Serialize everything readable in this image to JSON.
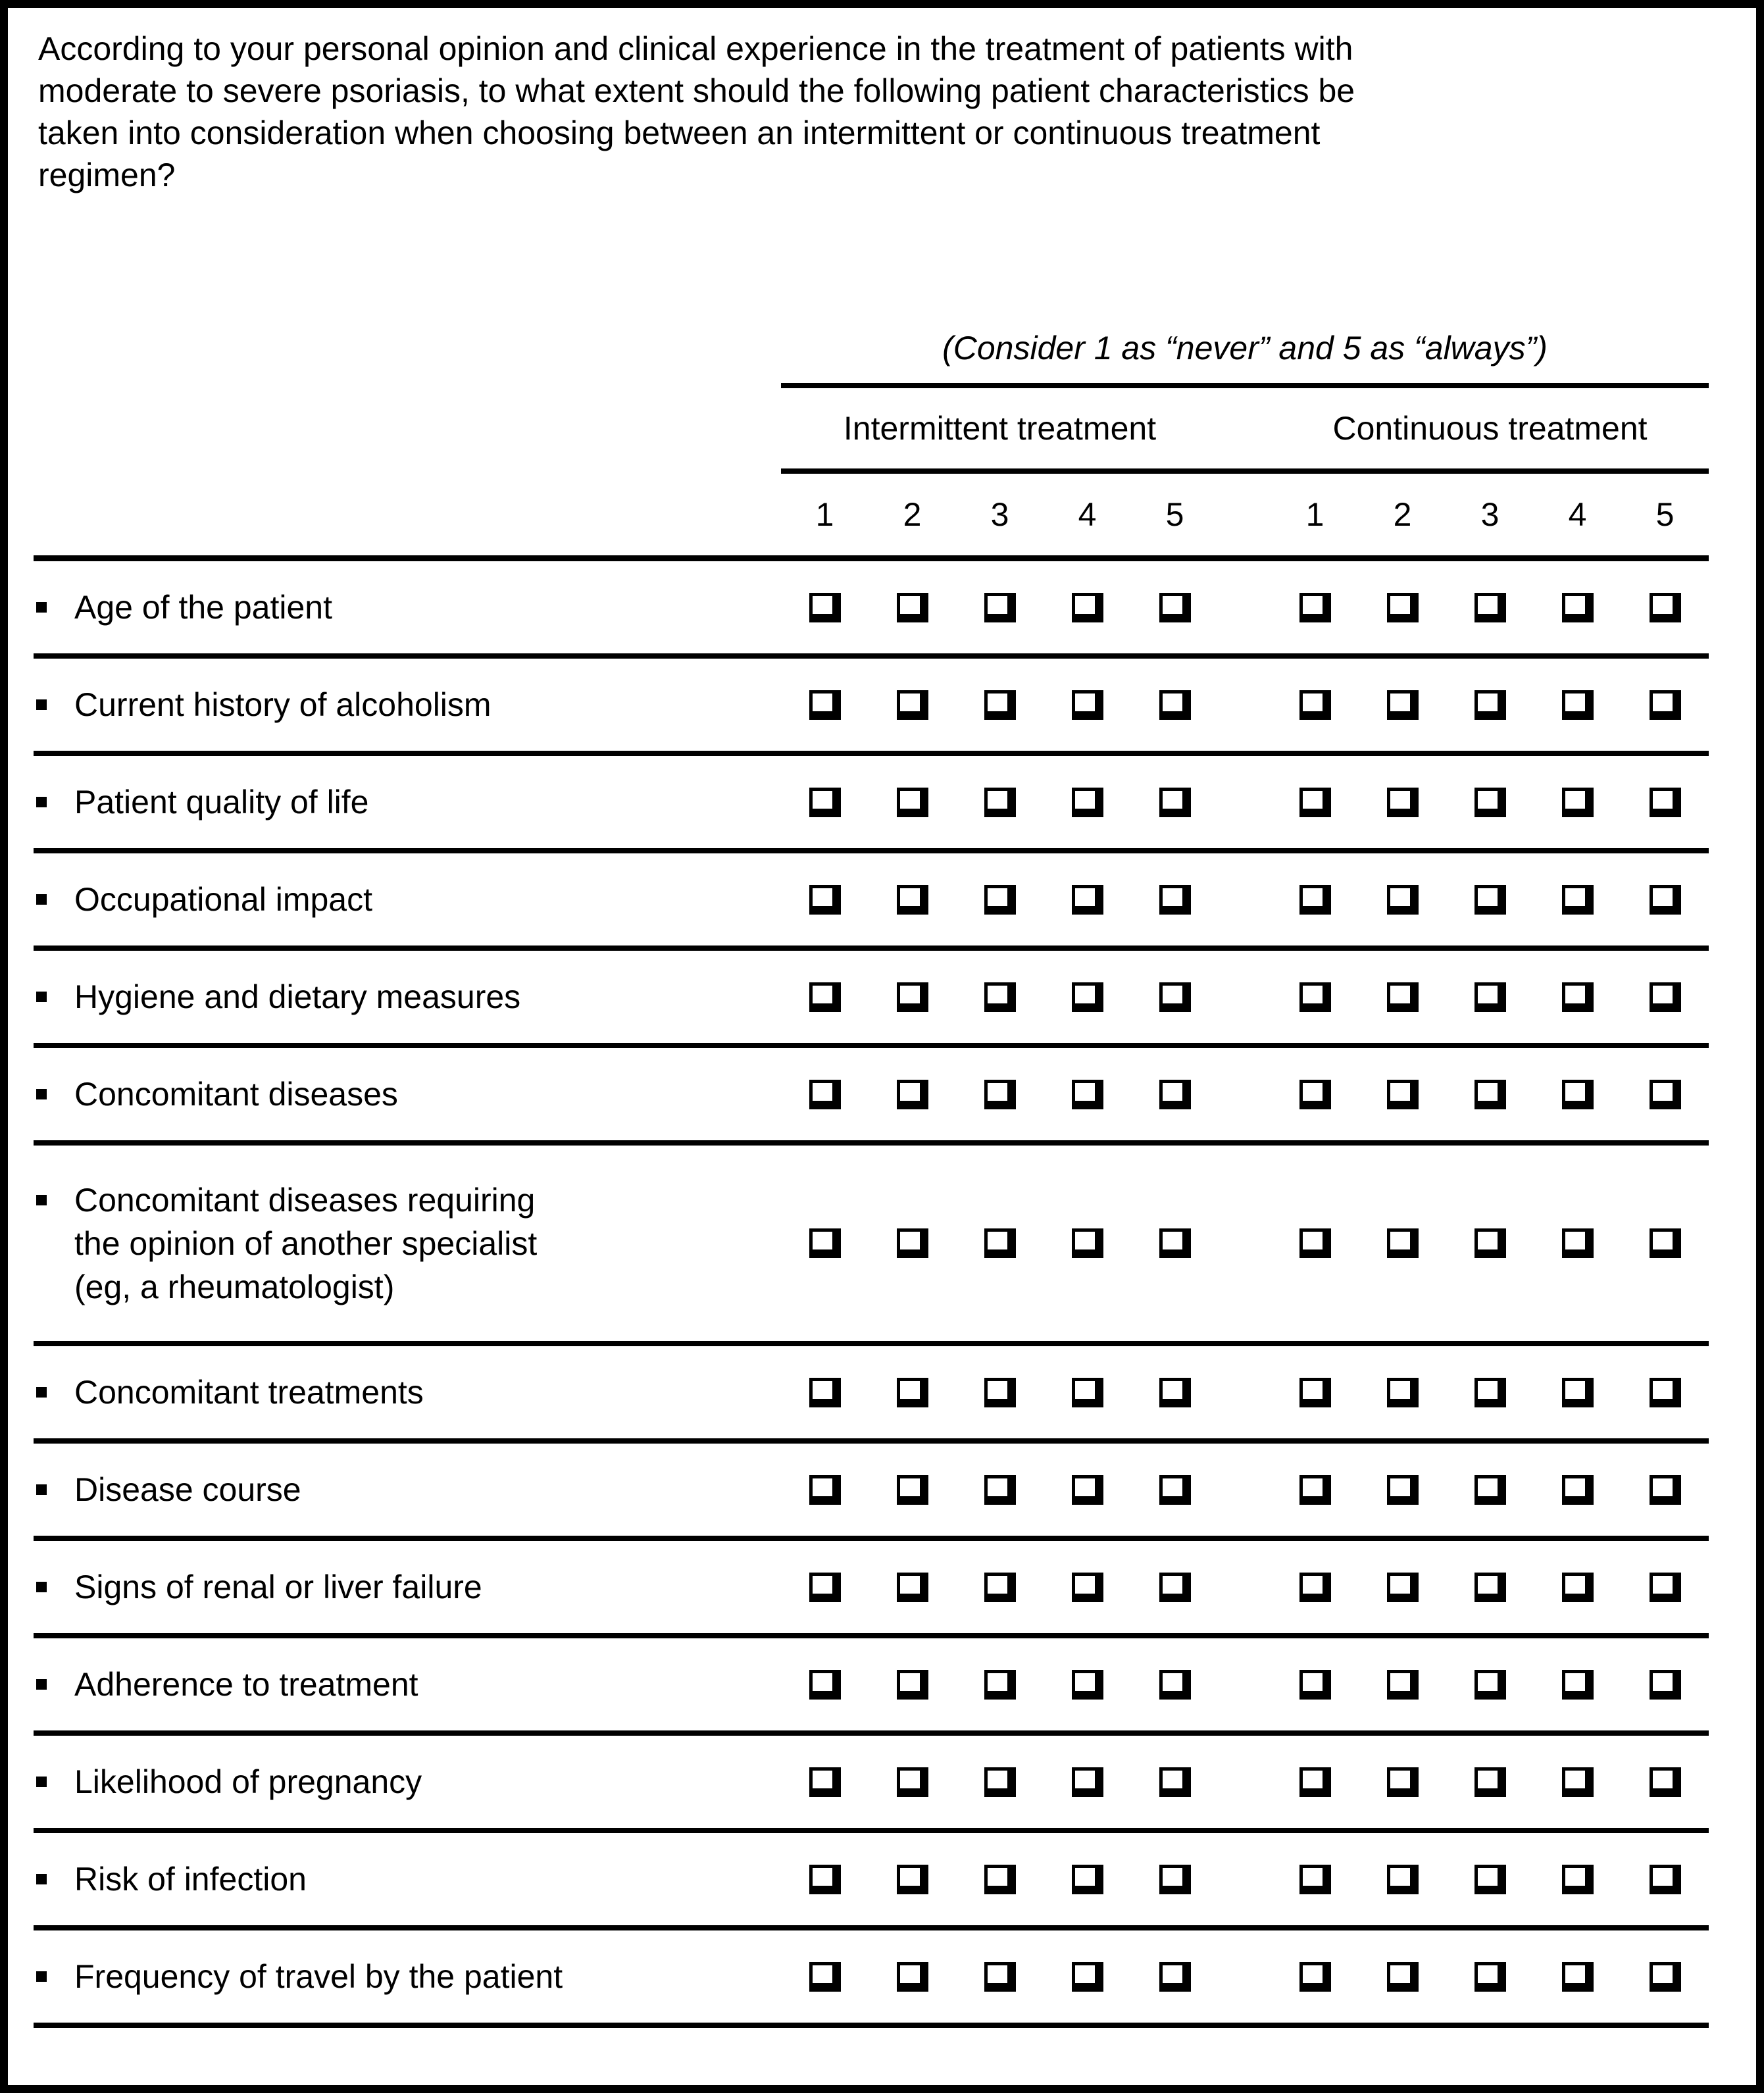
{
  "colors": {
    "ink": "#000000",
    "background": "#ffffff"
  },
  "question": "According to your personal opinion and clinical experience in the treatment of patients with\nmoderate to severe psoriasis, to what extent should the following patient characteristics be\ntaken into consideration when choosing between an intermittent or continuous treatment\nregimen?",
  "scale_note": "(Consider 1 as “never” and 5 as “always”)",
  "column_groups": [
    {
      "id": "intermittent",
      "label": "Intermittent treatment",
      "scale": [
        "1",
        "2",
        "3",
        "4",
        "5"
      ]
    },
    {
      "id": "continuous",
      "label": "Continuous treatment",
      "scale": [
        "1",
        "2",
        "3",
        "4",
        "5"
      ]
    }
  ],
  "rows": [
    {
      "label": "Age of the patient"
    },
    {
      "label": "Current history of alcoholism"
    },
    {
      "label": "Patient quality of life"
    },
    {
      "label": "Occupational impact"
    },
    {
      "label": "Hygiene and dietary measures"
    },
    {
      "label": "Concomitant diseases"
    },
    {
      "label": "Concomitant diseases requiring\nthe opinion of another specialist\n(eg, a rheumatologist)"
    },
    {
      "label": "Concomitant treatments"
    },
    {
      "label": "Disease course"
    },
    {
      "label": "Signs of renal or liver failure"
    },
    {
      "label": "Adherence to treatment"
    },
    {
      "label": "Likelihood of pregnancy"
    },
    {
      "label": "Risk of infection"
    },
    {
      "label": "Frequency of travel by the patient"
    }
  ],
  "checkboxes_checked": false
}
